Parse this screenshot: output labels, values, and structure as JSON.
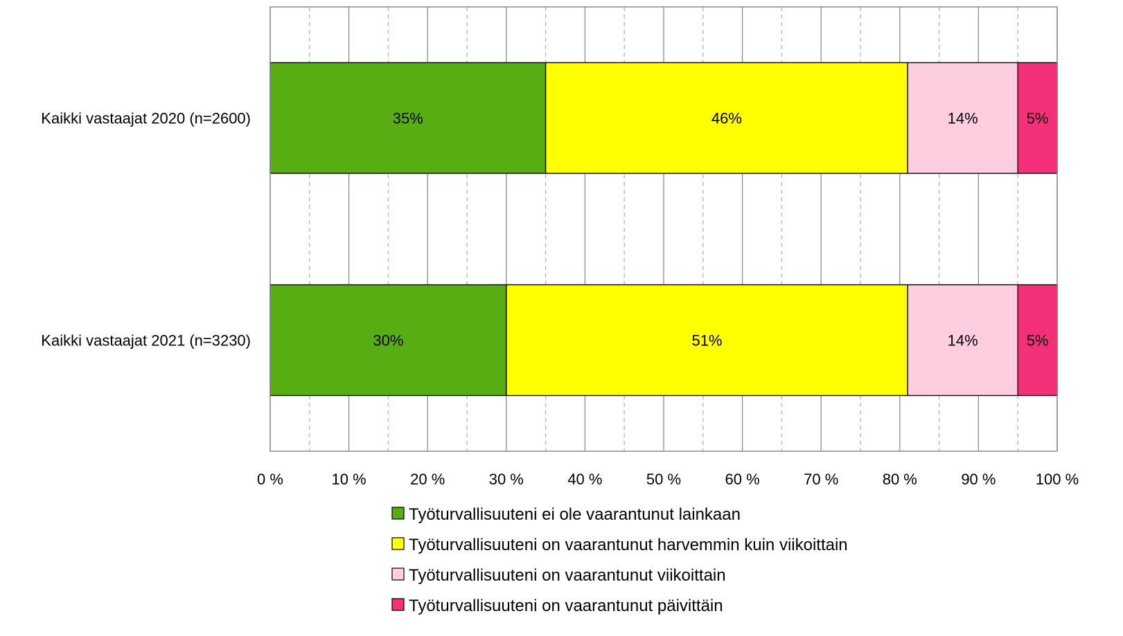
{
  "chart_data": {
    "type": "bar",
    "orientation": "horizontal",
    "stacked": "percent",
    "categories": [
      "Kaikki vastaajat 2020 (n=2600)",
      "Kaikki vastaajat 2021 (n=3230)"
    ],
    "series": [
      {
        "name": "Työturvallisuuteni ei ole vaarantunut lainkaan",
        "values": [
          35,
          30
        ],
        "labels": [
          "35%",
          "30%"
        ],
        "color": "#57AD12"
      },
      {
        "name": "Työturvallisuuteni on vaarantunut harvemmin kuin viikoittain",
        "values": [
          46,
          51
        ],
        "labels": [
          "46%",
          "51%"
        ],
        "color": "#FFFF00"
      },
      {
        "name": "Työturvallisuuteni on vaarantunut viikoittain",
        "values": [
          14,
          14
        ],
        "labels": [
          "14%",
          "14%"
        ],
        "color": "#FFCCE0"
      },
      {
        "name": "Työturvallisuuteni on vaarantunut päivittäin",
        "values": [
          5,
          5
        ],
        "labels": [
          "5%",
          "5%"
        ],
        "color": "#F5307A"
      }
    ],
    "x_ticks": [
      "0 %",
      "10 %",
      "20 %",
      "30 %",
      "40 %",
      "50 %",
      "60 %",
      "70 %",
      "80 %",
      "90 %",
      "100 %"
    ],
    "xlim": [
      0,
      100
    ],
    "grid": {
      "major": true,
      "minor_dashed": true
    },
    "legend_position": "bottom"
  }
}
